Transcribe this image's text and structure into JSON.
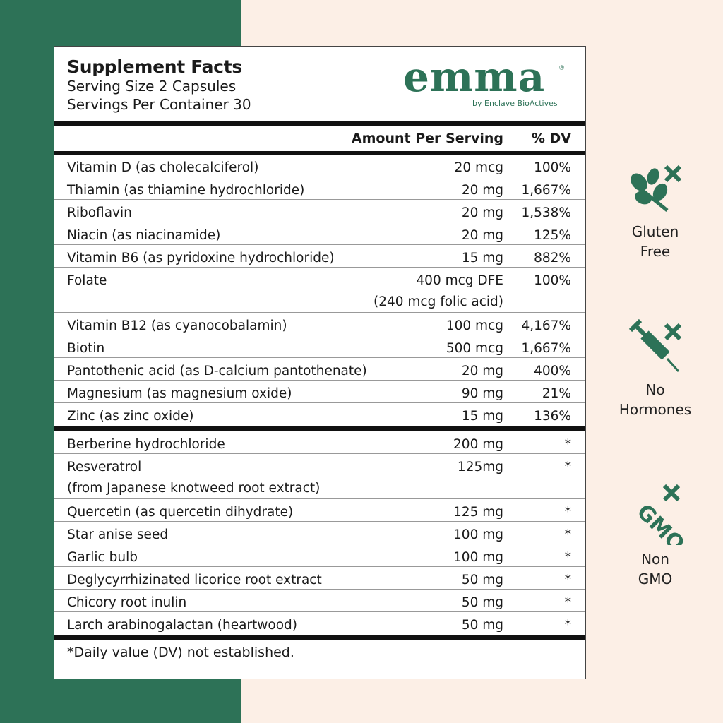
{
  "header": {
    "title": "Supplement Facts",
    "serving_size": "Serving Size 2 Capsules",
    "servings_per_container": "Servings Per Container 30"
  },
  "brand": {
    "logo": "emma",
    "registered": "®",
    "byline": "by Enclave BioActives",
    "color": "#2d7257"
  },
  "columns": {
    "amount": "Amount Per Serving",
    "dv": "% DV"
  },
  "vitamins": [
    {
      "name": "Vitamin D (as cholecalciferol)",
      "amount": "20 mcg",
      "dv": "100%"
    },
    {
      "name": "Thiamin (as thiamine hydrochloride)",
      "amount": "20 mg",
      "dv": "1,667%"
    },
    {
      "name": "Riboflavin",
      "amount": "20 mg",
      "dv": "1,538%"
    },
    {
      "name": "Niacin (as niacinamide)",
      "amount": "20 mg",
      "dv": "125%"
    },
    {
      "name": "Vitamin B6 (as pyridoxine hydrochloride)",
      "amount": "15 mg",
      "dv": "882%"
    },
    {
      "name": "Folate",
      "amount": "400 mcg DFE",
      "amount2": "(240 mcg folic acid)",
      "dv": "100%"
    },
    {
      "name": "Vitamin B12 (as cyanocobalamin)",
      "amount": "100 mcg",
      "dv": "4,167%"
    },
    {
      "name": "Biotin",
      "amount": "500 mcg",
      "dv": "1,667%"
    },
    {
      "name": "Pantothenic acid (as D-calcium pantothenate)",
      "amount": "20 mg",
      "dv": "400%"
    },
    {
      "name": "Magnesium (as magnesium oxide)",
      "amount": "90 mg",
      "dv": "21%"
    },
    {
      "name": "Zinc (as zinc oxide)",
      "amount": "15 mg",
      "dv": "136%"
    }
  ],
  "others": [
    {
      "name": "Berberine hydrochloride",
      "amount": "200 mg",
      "dv": "*"
    },
    {
      "name": "Resveratrol",
      "name2": "(from Japanese knotweed root extract)",
      "amount": "125mg",
      "dv": "*"
    },
    {
      "name": "Quercetin (as quercetin dihydrate)",
      "amount": "125 mg",
      "dv": "*"
    },
    {
      "name": "Star anise seed",
      "amount": "100 mg",
      "dv": "*"
    },
    {
      "name": "Garlic bulb",
      "amount": "100 mg",
      "dv": "*"
    },
    {
      "name": "Deglycyrrhizinated licorice root extract",
      "amount": "50 mg",
      "dv": "*"
    },
    {
      "name": "Chicory root inulin",
      "amount": "50 mg",
      "dv": "*"
    },
    {
      "name": "Larch arabinogalactan (heartwood)",
      "amount": "50 mg",
      "dv": "*"
    }
  ],
  "footnote": "*Daily value (DV) not established.",
  "badges": [
    {
      "icon": "wheat-crossed-icon",
      "line1": "Gluten",
      "line2": "Free"
    },
    {
      "icon": "syringe-crossed-icon",
      "line1": "No",
      "line2": "Hormones"
    },
    {
      "icon": "gmo-crossed-icon",
      "line1": "Non",
      "line2": "GMO"
    }
  ]
}
